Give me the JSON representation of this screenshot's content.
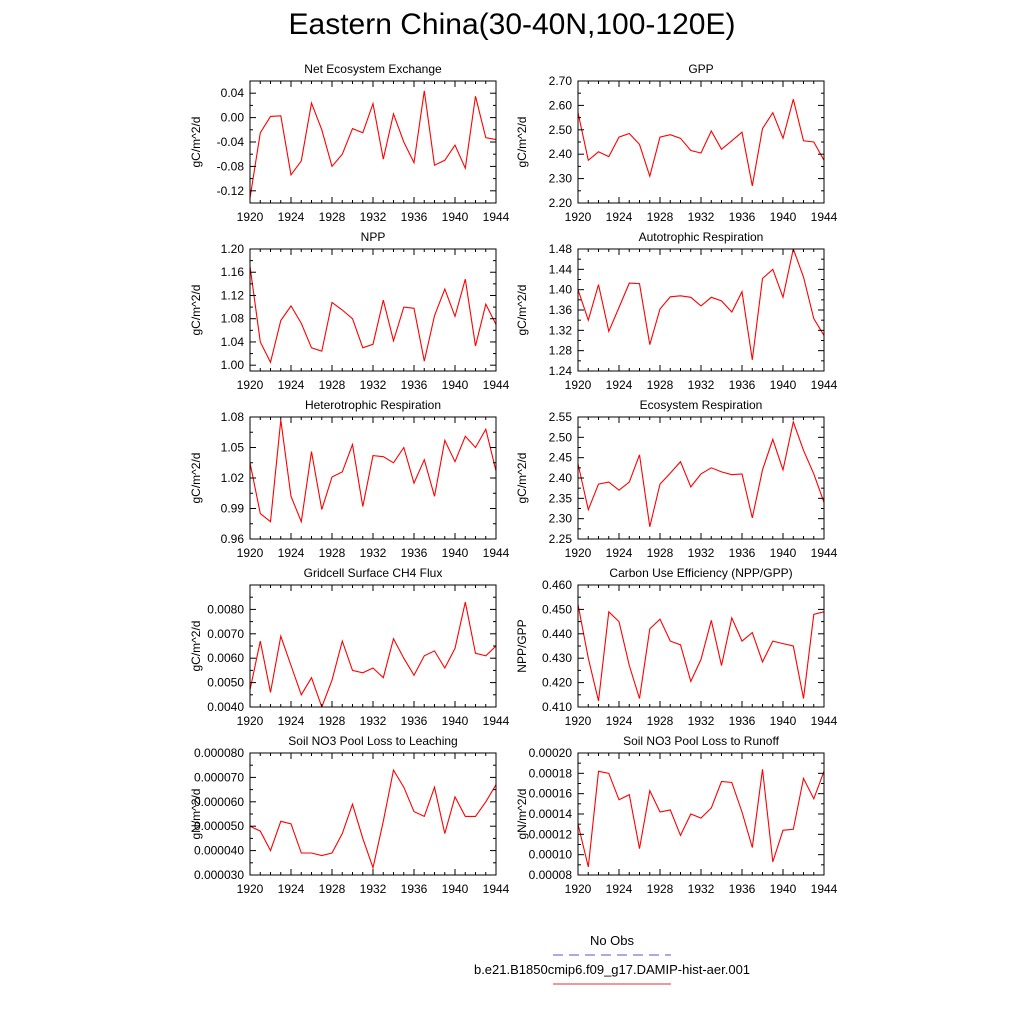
{
  "figure": {
    "title": "Eastern China(30-40N,100-120E)",
    "legend": [
      {
        "label": "No Obs",
        "color": "#5555cc",
        "dash": true
      },
      {
        "label": "b.e21.B1850cmip6.f09_g17.DAMIP-hist-aer.001",
        "color": "#dd3333",
        "dash": false
      }
    ]
  },
  "chart_data": [
    {
      "type": "line",
      "title": "Net Ecosystem Exchange",
      "ylabel": "gC/m^2/d",
      "ylim": [
        -0.14,
        0.06
      ],
      "yticks": [
        -0.12,
        -0.08,
        -0.04,
        0.0,
        0.04
      ],
      "ytick_labels": [
        "-0.12",
        "-0.08",
        "-0.04",
        "0.00",
        "0.04"
      ],
      "xlim": [
        1920,
        1944
      ],
      "xticks": [
        "1920",
        "1924",
        "1928",
        "1932",
        "1936",
        "1940",
        "1944"
      ],
      "series": [
        {
          "color": "#ff0000",
          "x": [
            1919,
            1920,
            1921,
            1922,
            1923,
            1924,
            1925,
            1926,
            1927,
            1928,
            1929,
            1930,
            1931,
            1932,
            1933,
            1934,
            1935,
            1936,
            1937,
            1938,
            1939,
            1940,
            1941,
            1942,
            1943,
            1944,
            1945
          ],
          "values": [
            -0.13,
            -0.132,
            -0.025,
            0.002,
            0.003,
            -0.094,
            -0.071,
            0.024,
            -0.02,
            -0.08,
            -0.06,
            -0.018,
            -0.025,
            0.023,
            -0.068,
            0.006,
            -0.04,
            -0.074,
            0.044,
            -0.078,
            -0.07,
            -0.045,
            -0.083,
            0.035,
            -0.033,
            -0.036,
            -0.04
          ]
        }
      ]
    },
    {
      "type": "line",
      "title": "GPP",
      "ylabel": "gC/m^2/d",
      "ylim": [
        2.2,
        2.7
      ],
      "yticks": [
        2.2,
        2.3,
        2.4,
        2.5,
        2.6,
        2.7
      ],
      "ytick_labels": [
        "2.20",
        "2.30",
        "2.40",
        "2.50",
        "2.60",
        "2.70"
      ],
      "xlim": [
        1920,
        1944
      ],
      "xticks": [
        "1920",
        "1924",
        "1928",
        "1932",
        "1936",
        "1940",
        "1944"
      ],
      "series": [
        {
          "color": "#ff0000",
          "x": [
            1919,
            1920,
            1921,
            1922,
            1923,
            1924,
            1925,
            1926,
            1927,
            1928,
            1929,
            1930,
            1931,
            1932,
            1933,
            1934,
            1935,
            1936,
            1937,
            1938,
            1939,
            1940,
            1941,
            1942,
            1943,
            1944,
            1945
          ],
          "values": [
            2.6,
            2.57,
            2.375,
            2.41,
            2.39,
            2.47,
            2.485,
            2.44,
            2.31,
            2.47,
            2.48,
            2.465,
            2.415,
            2.405,
            2.495,
            2.42,
            2.455,
            2.49,
            2.27,
            2.505,
            2.57,
            2.465,
            2.625,
            2.455,
            2.45,
            2.375,
            2.36
          ]
        }
      ]
    },
    {
      "type": "line",
      "title": "NPP",
      "ylabel": "gC/m^2/d",
      "ylim": [
        0.99,
        1.2
      ],
      "yticks": [
        1.0,
        1.04,
        1.08,
        1.12,
        1.16,
        1.2
      ],
      "ytick_labels": [
        "1.00",
        "1.04",
        "1.08",
        "1.12",
        "1.16",
        "1.20"
      ],
      "xlim": [
        1920,
        1944
      ],
      "xticks": [
        "1920",
        "1924",
        "1928",
        "1932",
        "1936",
        "1940",
        "1944"
      ],
      "series": [
        {
          "color": "#ff0000",
          "x": [
            1919,
            1920,
            1921,
            1922,
            1923,
            1924,
            1925,
            1926,
            1927,
            1928,
            1929,
            1930,
            1931,
            1932,
            1933,
            1934,
            1935,
            1936,
            1937,
            1938,
            1939,
            1940,
            1941,
            1942,
            1943,
            1944,
            1945
          ],
          "values": [
            1.19,
            1.17,
            1.04,
            1.005,
            1.077,
            1.102,
            1.072,
            1.03,
            1.024,
            1.108,
            1.095,
            1.08,
            1.03,
            1.036,
            1.112,
            1.042,
            1.1,
            1.098,
            1.007,
            1.085,
            1.131,
            1.084,
            1.148,
            1.033,
            1.105,
            1.07,
            1.06
          ]
        }
      ]
    },
    {
      "type": "line",
      "title": "Autotrophic Respiration",
      "ylabel": "gC/m^2/d",
      "ylim": [
        1.24,
        1.48
      ],
      "yticks": [
        1.24,
        1.28,
        1.32,
        1.36,
        1.4,
        1.44,
        1.48
      ],
      "ytick_labels": [
        "1.24",
        "1.28",
        "1.32",
        "1.36",
        "1.40",
        "1.44",
        "1.48"
      ],
      "xlim": [
        1920,
        1944
      ],
      "xticks": [
        "1920",
        "1924",
        "1928",
        "1932",
        "1936",
        "1940",
        "1944"
      ],
      "series": [
        {
          "color": "#ff0000",
          "x": [
            1919,
            1920,
            1921,
            1922,
            1923,
            1924,
            1925,
            1926,
            1927,
            1928,
            1929,
            1930,
            1931,
            1932,
            1933,
            1934,
            1935,
            1936,
            1937,
            1938,
            1939,
            1940,
            1941,
            1942,
            1943,
            1944,
            1945
          ],
          "values": [
            1.41,
            1.4,
            1.34,
            1.41,
            1.318,
            1.365,
            1.413,
            1.412,
            1.292,
            1.362,
            1.386,
            1.388,
            1.385,
            1.368,
            1.385,
            1.378,
            1.356,
            1.396,
            1.262,
            1.422,
            1.44,
            1.385,
            1.48,
            1.425,
            1.343,
            1.31,
            1.3
          ]
        }
      ]
    },
    {
      "type": "line",
      "title": "Heterotrophic Respiration",
      "ylabel": "gC/m^2/d",
      "ylim": [
        0.96,
        1.08
      ],
      "yticks": [
        0.96,
        0.99,
        1.02,
        1.05,
        1.08
      ],
      "ytick_labels": [
        "0.96",
        "0.99",
        "1.02",
        "1.05",
        "1.08"
      ],
      "xlim": [
        1920,
        1944
      ],
      "xticks": [
        "1920",
        "1924",
        "1928",
        "1932",
        "1936",
        "1940",
        "1944"
      ],
      "series": [
        {
          "color": "#ff0000",
          "x": [
            1919,
            1920,
            1921,
            1922,
            1923,
            1924,
            1925,
            1926,
            1927,
            1928,
            1929,
            1930,
            1931,
            1932,
            1933,
            1934,
            1935,
            1936,
            1937,
            1938,
            1939,
            1940,
            1941,
            1942,
            1943,
            1944,
            1945
          ],
          "values": [
            1.05,
            1.035,
            0.985,
            0.977,
            1.077,
            1.002,
            0.977,
            1.046,
            0.989,
            1.021,
            1.026,
            1.053,
            0.992,
            1.042,
            1.041,
            1.035,
            1.05,
            1.015,
            1.038,
            1.002,
            1.057,
            1.036,
            1.061,
            1.05,
            1.068,
            1.027,
            1.02
          ]
        }
      ]
    },
    {
      "type": "line",
      "title": "Ecosystem Respiration",
      "ylabel": "gC/m^2/d",
      "ylim": [
        2.25,
        2.55
      ],
      "yticks": [
        2.25,
        2.3,
        2.35,
        2.4,
        2.45,
        2.5,
        2.55
      ],
      "ytick_labels": [
        "2.25",
        "2.30",
        "2.35",
        "2.40",
        "2.45",
        "2.50",
        "2.55"
      ],
      "xlim": [
        1920,
        1944
      ],
      "xticks": [
        "1920",
        "1924",
        "1928",
        "1932",
        "1936",
        "1940",
        "1944"
      ],
      "series": [
        {
          "color": "#ff0000",
          "x": [
            1919,
            1920,
            1921,
            1922,
            1923,
            1924,
            1925,
            1926,
            1927,
            1928,
            1929,
            1930,
            1931,
            1932,
            1933,
            1934,
            1935,
            1936,
            1937,
            1938,
            1939,
            1940,
            1941,
            1942,
            1943,
            1944,
            1945
          ],
          "values": [
            2.45,
            2.435,
            2.322,
            2.385,
            2.39,
            2.37,
            2.39,
            2.457,
            2.28,
            2.385,
            2.412,
            2.44,
            2.378,
            2.41,
            2.425,
            2.415,
            2.408,
            2.41,
            2.302,
            2.42,
            2.495,
            2.42,
            2.538,
            2.468,
            2.41,
            2.34,
            2.33
          ]
        }
      ]
    },
    {
      "type": "line",
      "title": "Gridcell Surface CH4 Flux",
      "ylabel": "gC/m^2/d",
      "ylim": [
        0.004,
        0.009
      ],
      "yticks": [
        0.004,
        0.005,
        0.006,
        0.007,
        0.008
      ],
      "ytick_labels": [
        "0.0040",
        "0.0050",
        "0.0060",
        "0.0070",
        "0.0080"
      ],
      "xlim": [
        1920,
        1944
      ],
      "xticks": [
        "1920",
        "1924",
        "1928",
        "1932",
        "1936",
        "1940",
        "1944"
      ],
      "series": [
        {
          "color": "#ff0000",
          "x": [
            1919,
            1920,
            1921,
            1922,
            1923,
            1924,
            1925,
            1926,
            1927,
            1928,
            1929,
            1930,
            1931,
            1932,
            1933,
            1934,
            1935,
            1936,
            1937,
            1938,
            1939,
            1940,
            1941,
            1942,
            1943,
            1944,
            1945
          ],
          "values": [
            0.0045,
            0.0047,
            0.0067,
            0.0046,
            0.0069,
            0.0057,
            0.0045,
            0.0052,
            0.004,
            0.0051,
            0.0067,
            0.0055,
            0.0054,
            0.0056,
            0.0052,
            0.0068,
            0.006,
            0.0053,
            0.0061,
            0.0063,
            0.0056,
            0.0064,
            0.0083,
            0.0062,
            0.0061,
            0.0065,
            0.0066
          ]
        }
      ]
    },
    {
      "type": "line",
      "title": "Carbon Use Efficiency (NPP/GPP)",
      "ylabel": "NPP/GPP",
      "ylim": [
        0.41,
        0.46
      ],
      "yticks": [
        0.41,
        0.42,
        0.43,
        0.44,
        0.45,
        0.46
      ],
      "ytick_labels": [
        "0.410",
        "0.420",
        "0.430",
        "0.440",
        "0.450",
        "0.460"
      ],
      "xlim": [
        1920,
        1944
      ],
      "xticks": [
        "1920",
        "1924",
        "1928",
        "1932",
        "1936",
        "1940",
        "1944"
      ],
      "series": [
        {
          "color": "#ff0000",
          "x": [
            1919,
            1920,
            1921,
            1922,
            1923,
            1924,
            1925,
            1926,
            1927,
            1928,
            1929,
            1930,
            1931,
            1932,
            1933,
            1934,
            1935,
            1936,
            1937,
            1938,
            1939,
            1940,
            1941,
            1942,
            1943,
            1944,
            1945
          ],
          "values": [
            0.455,
            0.452,
            0.43,
            0.4125,
            0.449,
            0.445,
            0.427,
            0.4135,
            0.442,
            0.446,
            0.437,
            0.4355,
            0.4205,
            0.4295,
            0.4455,
            0.427,
            0.4465,
            0.437,
            0.4405,
            0.4285,
            0.437,
            0.436,
            0.435,
            0.4135,
            0.448,
            0.449,
            0.45
          ]
        }
      ]
    },
    {
      "type": "line",
      "title": "Soil NO3 Pool Loss to Leaching",
      "ylabel": "gN/m^2/d",
      "ylim": [
        3e-05,
        8e-05
      ],
      "yticks": [
        3e-05,
        4e-05,
        5e-05,
        6e-05,
        7e-05,
        8e-05
      ],
      "ytick_labels": [
        "0.000030",
        "0.000040",
        "0.000050",
        "0.000060",
        "0.000070",
        "0.000080"
      ],
      "xlim": [
        1920,
        1944
      ],
      "xticks": [
        "1920",
        "1924",
        "1928",
        "1932",
        "1936",
        "1940",
        "1944"
      ],
      "series": [
        {
          "color": "#ff0000",
          "x": [
            1919,
            1920,
            1921,
            1922,
            1923,
            1924,
            1925,
            1926,
            1927,
            1928,
            1929,
            1930,
            1931,
            1932,
            1933,
            1934,
            1935,
            1936,
            1937,
            1938,
            1939,
            1940,
            1941,
            1942,
            1943,
            1944,
            1945
          ],
          "values": [
            5.1e-05,
            5e-05,
            4.8e-05,
            4e-05,
            5.2e-05,
            5.1e-05,
            3.9e-05,
            3.9e-05,
            3.8e-05,
            3.9e-05,
            4.7e-05,
            5.9e-05,
            4.5e-05,
            3.3e-05,
            5.2e-05,
            7.3e-05,
            6.6e-05,
            5.6e-05,
            5.4e-05,
            6.6e-05,
            4.7e-05,
            6.2e-05,
            5.4e-05,
            5.4e-05,
            6e-05,
            6.7e-05,
            6.9e-05
          ]
        }
      ]
    },
    {
      "type": "line",
      "title": "Soil NO3 Pool Loss to Runoff",
      "ylabel": "gN/m^2/d",
      "ylim": [
        8e-05,
        0.0002
      ],
      "yticks": [
        8e-05,
        0.0001,
        0.00012,
        0.00014,
        0.00016,
        0.00018,
        0.0002
      ],
      "ytick_labels": [
        "0.00008",
        "0.00010",
        "0.00012",
        "0.00014",
        "0.00016",
        "0.00018",
        "0.00020"
      ],
      "xlim": [
        1920,
        1944
      ],
      "xticks": [
        "1920",
        "1924",
        "1928",
        "1932",
        "1936",
        "1940",
        "1944"
      ],
      "series": [
        {
          "color": "#ff0000",
          "x": [
            1919,
            1920,
            1921,
            1922,
            1923,
            1924,
            1925,
            1926,
            1927,
            1928,
            1929,
            1930,
            1931,
            1932,
            1933,
            1934,
            1935,
            1936,
            1937,
            1938,
            1939,
            1940,
            1941,
            1942,
            1943,
            1944,
            1945
          ],
          "values": [
            0.000145,
            0.00013,
            8.8e-05,
            0.000182,
            0.00018,
            0.000154,
            0.000159,
            0.000106,
            0.000163,
            0.000142,
            0.000144,
            0.000119,
            0.00014,
            0.000136,
            0.000146,
            0.000172,
            0.000171,
            0.000142,
            0.000107,
            0.000184,
            9.3e-05,
            0.000124,
            0.000125,
            0.000175,
            0.000155,
            0.000182,
            0.00019
          ]
        }
      ]
    }
  ]
}
